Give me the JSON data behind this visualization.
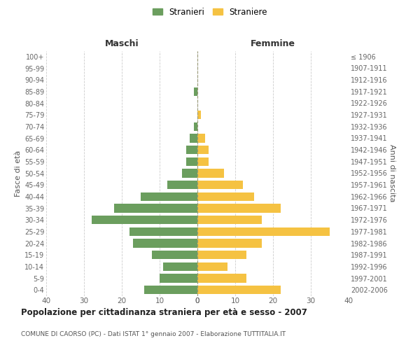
{
  "age_groups": [
    "0-4",
    "5-9",
    "10-14",
    "15-19",
    "20-24",
    "25-29",
    "30-34",
    "35-39",
    "40-44",
    "45-49",
    "50-54",
    "55-59",
    "60-64",
    "65-69",
    "70-74",
    "75-79",
    "80-84",
    "85-89",
    "90-94",
    "95-99",
    "100+"
  ],
  "birth_years": [
    "2002-2006",
    "1997-2001",
    "1992-1996",
    "1987-1991",
    "1982-1986",
    "1977-1981",
    "1972-1976",
    "1967-1971",
    "1962-1966",
    "1957-1961",
    "1952-1956",
    "1947-1951",
    "1942-1946",
    "1937-1941",
    "1932-1936",
    "1927-1931",
    "1922-1926",
    "1917-1921",
    "1912-1916",
    "1907-1911",
    "≤ 1906"
  ],
  "maschi": [
    14,
    10,
    9,
    12,
    17,
    18,
    28,
    22,
    15,
    8,
    4,
    3,
    3,
    2,
    1,
    0,
    0,
    1,
    0,
    0,
    0
  ],
  "femmine": [
    22,
    13,
    8,
    13,
    17,
    35,
    17,
    22,
    15,
    12,
    7,
    3,
    3,
    2,
    0,
    1,
    0,
    0,
    0,
    0,
    0
  ],
  "male_color": "#6b9e5e",
  "female_color": "#f5c242",
  "background_color": "#ffffff",
  "grid_color": "#cccccc",
  "title": "Popolazione per cittadinanza straniera per età e sesso - 2007",
  "subtitle": "COMUNE DI CAORSO (PC) - Dati ISTAT 1° gennaio 2007 - Elaborazione TUTTITALIA.IT",
  "label_maschi": "Maschi",
  "label_femmine": "Femmine",
  "ylabel_left": "Fasce di età",
  "ylabel_right": "Anni di nascita",
  "legend_male": "Stranieri",
  "legend_female": "Straniere",
  "xlim": 40,
  "bar_height": 0.75
}
